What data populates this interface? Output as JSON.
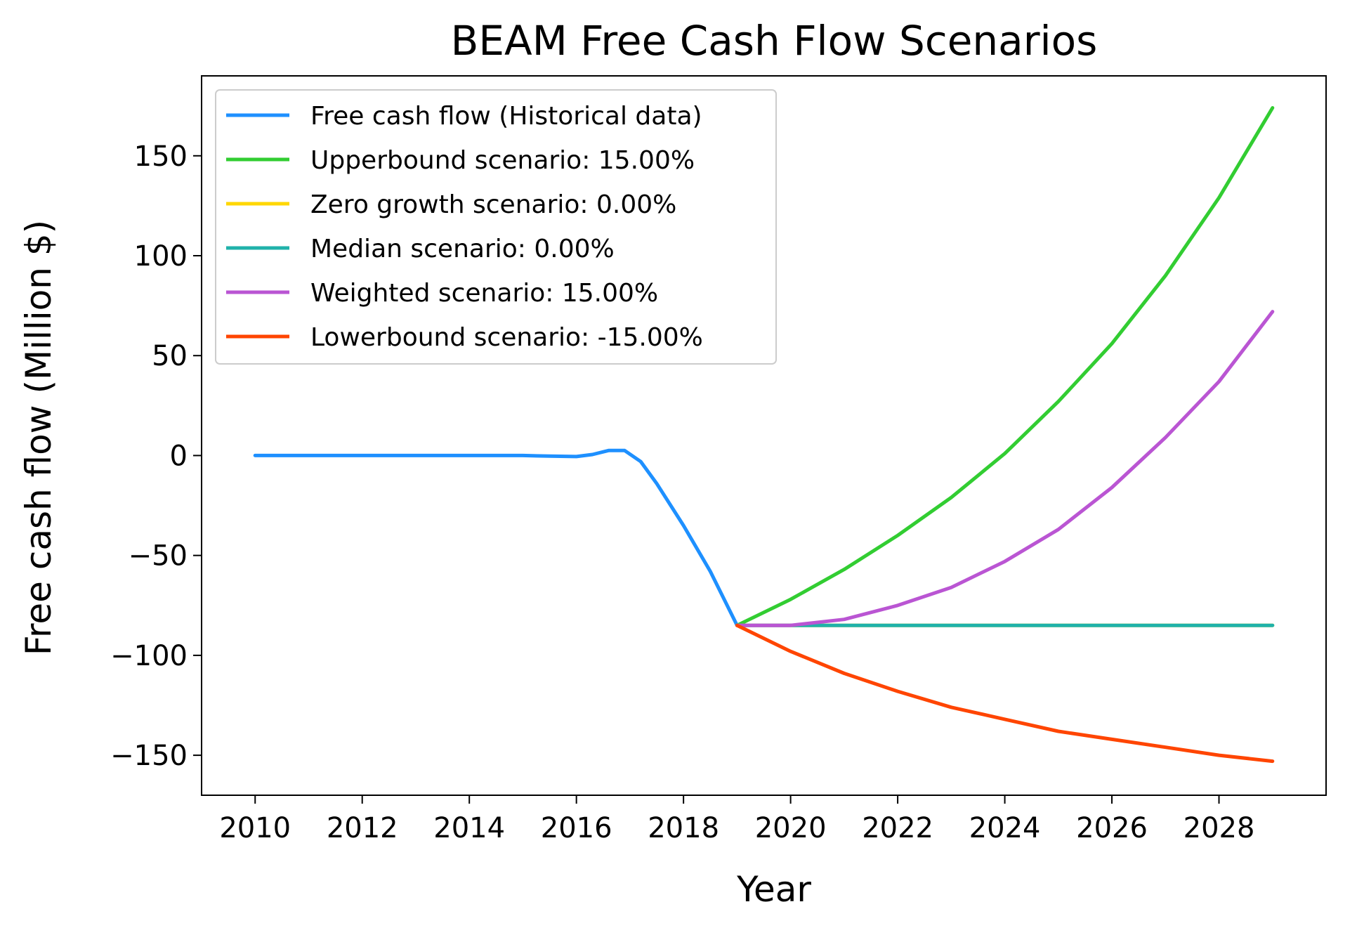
{
  "chart_data": {
    "type": "line",
    "title": "BEAM Free Cash Flow Scenarios",
    "xlabel": "Year",
    "ylabel": "Free cash flow (Million $)",
    "xlim": [
      2009.0,
      2030.0
    ],
    "ylim": [
      -170,
      190
    ],
    "xticks": [
      2010,
      2012,
      2014,
      2016,
      2018,
      2020,
      2022,
      2024,
      2026,
      2028
    ],
    "yticks": [
      -150,
      -100,
      -50,
      0,
      50,
      100,
      150
    ],
    "ytick_labels": [
      "−150",
      "−100",
      "−50",
      "0",
      "50",
      "100",
      "150"
    ],
    "grid": false,
    "legend_position": "upper-left",
    "series": [
      {
        "name": "Free cash flow (Historical data)",
        "color": "#1e90ff",
        "x": [
          2010,
          2011,
          2012,
          2013,
          2014,
          2015,
          2015.5,
          2016,
          2016.3,
          2016.6,
          2016.9,
          2017.2,
          2017.5,
          2018,
          2018.5,
          2019
        ],
        "y": [
          0,
          0,
          0,
          0,
          0,
          0,
          -0.3,
          -0.5,
          0.5,
          2.5,
          2.5,
          -3,
          -14,
          -35,
          -58,
          -85
        ]
      },
      {
        "name": "Upperbound scenario: 15.00%",
        "color": "#32cd32",
        "x": [
          2019,
          2020,
          2021,
          2022,
          2023,
          2024,
          2025,
          2026,
          2027,
          2028,
          2029
        ],
        "y": [
          -85,
          -72,
          -57,
          -40,
          -21,
          1,
          27,
          56,
          90,
          129,
          174
        ]
      },
      {
        "name": "Zero growth scenario: 0.00%",
        "color": "#ffd700",
        "x": [
          2019,
          2020,
          2021,
          2022,
          2023,
          2024,
          2025,
          2026,
          2027,
          2028,
          2029
        ],
        "y": [
          -85,
          -85,
          -85,
          -85,
          -85,
          -85,
          -85,
          -85,
          -85,
          -85,
          -85
        ]
      },
      {
        "name": "Median scenario: 0.00%",
        "color": "#20b2aa",
        "x": [
          2019,
          2020,
          2021,
          2022,
          2023,
          2024,
          2025,
          2026,
          2027,
          2028,
          2029
        ],
        "y": [
          -85,
          -85,
          -85,
          -85,
          -85,
          -85,
          -85,
          -85,
          -85,
          -85,
          -85
        ]
      },
      {
        "name": "Weighted scenario: 15.00%",
        "color": "#ba55d3",
        "x": [
          2019,
          2020,
          2021,
          2022,
          2023,
          2024,
          2025,
          2026,
          2027,
          2028,
          2029
        ],
        "y": [
          -85,
          -85,
          -82,
          -75,
          -66,
          -53,
          -37,
          -16,
          9,
          37,
          72
        ]
      },
      {
        "name": "Lowerbound scenario: -15.00%",
        "color": "#ff4500",
        "x": [
          2019,
          2020,
          2021,
          2022,
          2023,
          2024,
          2025,
          2026,
          2027,
          2028,
          2029
        ],
        "y": [
          -85,
          -98,
          -109,
          -118,
          -126,
          -132,
          -138,
          -142,
          -146,
          -150,
          -153
        ]
      }
    ]
  }
}
